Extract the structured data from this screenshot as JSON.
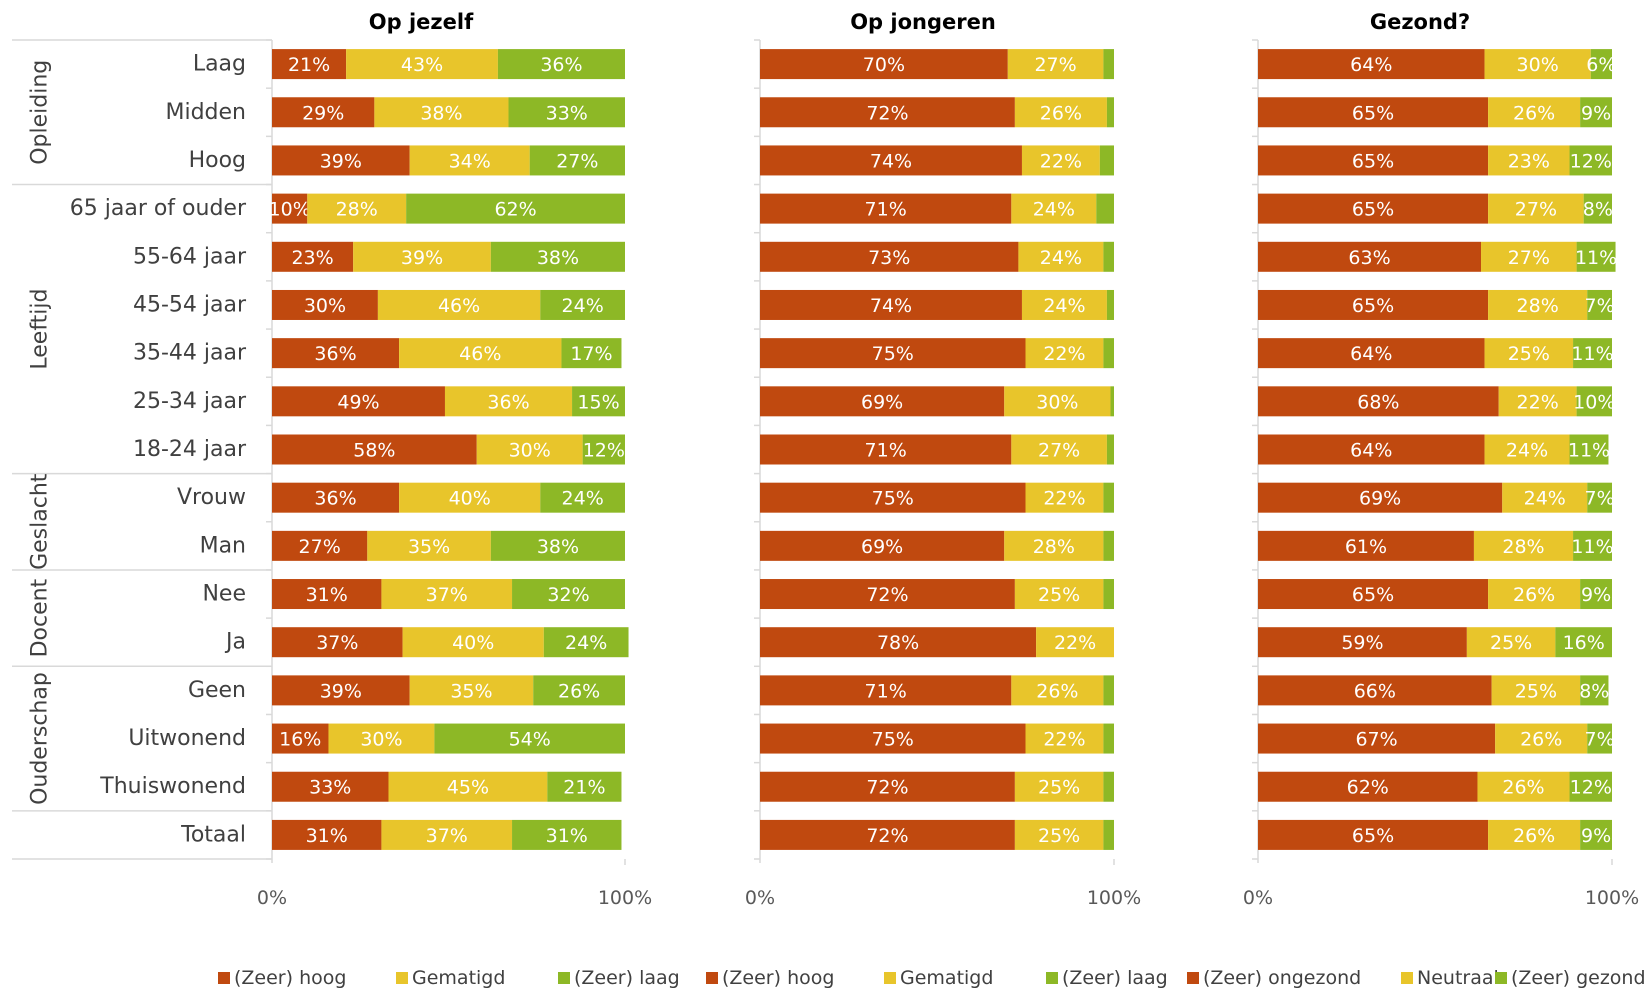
{
  "chart_data": {
    "type": "bar",
    "stacked": "percent",
    "orientation": "horizontal",
    "categories": [
      "Laag",
      "Midden",
      "Hoog",
      "65 jaar of ouder",
      "55-64 jaar",
      "45-54 jaar",
      "35-44 jaar",
      "25-34 jaar",
      "18-24 jaar",
      "Vrouw",
      "Man",
      "Nee",
      "Ja",
      "Geen",
      "Uitwonend",
      "Thuiswonend",
      "Totaal"
    ],
    "groups": [
      {
        "label": "Opleiding",
        "categories": [
          "Laag",
          "Midden",
          "Hoog"
        ]
      },
      {
        "label": "Leeftijd",
        "categories": [
          "65 jaar of ouder",
          "55-64 jaar",
          "45-54 jaar",
          "35-44 jaar",
          "25-34 jaar",
          "18-24 jaar"
        ]
      },
      {
        "label": "Geslacht",
        "categories": [
          "Vrouw",
          "Man"
        ]
      },
      {
        "label": "Docent",
        "categories": [
          "Nee",
          "Ja"
        ]
      },
      {
        "label": "Ouderschap",
        "categories": [
          "Geen",
          "Uitwonend",
          "Thuiswonend"
        ]
      },
      {
        "label": "",
        "categories": [
          "Totaal"
        ]
      }
    ],
    "colors": {
      "c1": "#c0490f",
      "c2": "#e8c52b",
      "c3": "#8db826"
    },
    "panels": [
      {
        "title": "Op jezelf",
        "xlim": [
          0,
          100
        ],
        "ticks": [
          "0%",
          "100%"
        ],
        "legend_position": "bottom",
        "series": [
          {
            "name": "(Zeer) hoog",
            "values": [
              21,
              29,
              39,
              10,
              23,
              30,
              36,
              49,
              58,
              36,
              27,
              31,
              37,
              39,
              16,
              33,
              31
            ]
          },
          {
            "name": "Gematigd",
            "values": [
              43,
              38,
              34,
              28,
              39,
              46,
              46,
              36,
              30,
              40,
              35,
              37,
              40,
              35,
              30,
              45,
              37
            ]
          },
          {
            "name": "(Zeer) laag",
            "values": [
              36,
              33,
              27,
              62,
              38,
              24,
              17,
              15,
              12,
              24,
              38,
              32,
              24,
              26,
              54,
              21,
              31
            ]
          }
        ],
        "labels": [
          [
            "21%",
            "43%",
            "36%"
          ],
          [
            "29%",
            "38%",
            "33%"
          ],
          [
            "39%",
            "34%",
            "27%"
          ],
          [
            "10%",
            "28%",
            "62%"
          ],
          [
            "23%",
            "39%",
            "38%"
          ],
          [
            "30%",
            "46%",
            "24%"
          ],
          [
            "36%",
            "46%",
            "17%"
          ],
          [
            "49%",
            "36%",
            "15%"
          ],
          [
            "58%",
            "30%",
            "12%"
          ],
          [
            "36%",
            "40%",
            "24%"
          ],
          [
            "27%",
            "35%",
            "38%"
          ],
          [
            "31%",
            "37%",
            "32%"
          ],
          [
            "37%",
            "40%",
            "24%"
          ],
          [
            "39%",
            "35%",
            "26%"
          ],
          [
            "16%",
            "30%",
            "54%"
          ],
          [
            "33%",
            "45%",
            "21%"
          ],
          [
            "31%",
            "37%",
            "31%"
          ]
        ]
      },
      {
        "title": "Op jongeren",
        "xlim": [
          0,
          100
        ],
        "ticks": [
          "0%",
          "100%"
        ],
        "legend_position": "bottom",
        "series": [
          {
            "name": "(Zeer) hoog",
            "values": [
              70,
              72,
              74,
              71,
              73,
              74,
              75,
              69,
              71,
              75,
              69,
              72,
              78,
              71,
              75,
              72,
              72
            ]
          },
          {
            "name": "Gematigd",
            "values": [
              27,
              26,
              22,
              24,
              24,
              24,
              22,
              30,
              27,
              22,
              28,
              25,
              22,
              26,
              22,
              25,
              25
            ]
          },
          {
            "name": "(Zeer) laag",
            "values": [
              3,
              2,
              4,
              5,
              3,
              2,
              3,
              1,
              2,
              3,
              3,
              3,
              0,
              3,
              3,
              3,
              3
            ]
          }
        ],
        "labels": [
          [
            "70%",
            "27%",
            ""
          ],
          [
            "72%",
            "26%",
            ""
          ],
          [
            "74%",
            "22%",
            ""
          ],
          [
            "71%",
            "24%",
            ""
          ],
          [
            "73%",
            "24%",
            ""
          ],
          [
            "74%",
            "24%",
            ""
          ],
          [
            "75%",
            "22%",
            ""
          ],
          [
            "69%",
            "30%",
            ""
          ],
          [
            "71%",
            "27%",
            ""
          ],
          [
            "75%",
            "22%",
            ""
          ],
          [
            "69%",
            "28%",
            ""
          ],
          [
            "72%",
            "25%",
            ""
          ],
          [
            "78%",
            "22%",
            ""
          ],
          [
            "71%",
            "26%",
            ""
          ],
          [
            "75%",
            "22%",
            ""
          ],
          [
            "72%",
            "25%",
            ""
          ],
          [
            "72%",
            "25%",
            ""
          ]
        ]
      },
      {
        "title": "Gezond?",
        "xlim": [
          0,
          100
        ],
        "ticks": [
          "0%",
          "100%"
        ],
        "legend_position": "bottom",
        "series": [
          {
            "name": "(Zeer) ongezond",
            "values": [
              64,
              65,
              65,
              65,
              63,
              65,
              64,
              68,
              64,
              69,
              61,
              65,
              59,
              66,
              67,
              62,
              65
            ]
          },
          {
            "name": "Neutraal",
            "values": [
              30,
              26,
              23,
              27,
              27,
              28,
              25,
              22,
              24,
              24,
              28,
              26,
              25,
              25,
              26,
              26,
              26
            ]
          },
          {
            "name": "(Zeer) gezond",
            "values": [
              6,
              9,
              12,
              8,
              11,
              7,
              11,
              10,
              11,
              7,
              11,
              9,
              16,
              8,
              7,
              12,
              9
            ]
          }
        ],
        "labels": [
          [
            "64%",
            "30%",
            "6%"
          ],
          [
            "65%",
            "26%",
            "9%"
          ],
          [
            "65%",
            "23%",
            "12%"
          ],
          [
            "65%",
            "27%",
            "8%"
          ],
          [
            "63%",
            "27%",
            "11%"
          ],
          [
            "65%",
            "28%",
            "7%"
          ],
          [
            "64%",
            "25%",
            "11%"
          ],
          [
            "68%",
            "22%",
            "10%"
          ],
          [
            "64%",
            "24%",
            "11%"
          ],
          [
            "69%",
            "24%",
            "7%"
          ],
          [
            "61%",
            "28%",
            "11%"
          ],
          [
            "65%",
            "26%",
            "9%"
          ],
          [
            "59%",
            "25%",
            "16%"
          ],
          [
            "66%",
            "25%",
            "8%"
          ],
          [
            "67%",
            "26%",
            "7%"
          ],
          [
            "62%",
            "26%",
            "12%"
          ],
          [
            "65%",
            "26%",
            "9%"
          ]
        ]
      }
    ]
  }
}
